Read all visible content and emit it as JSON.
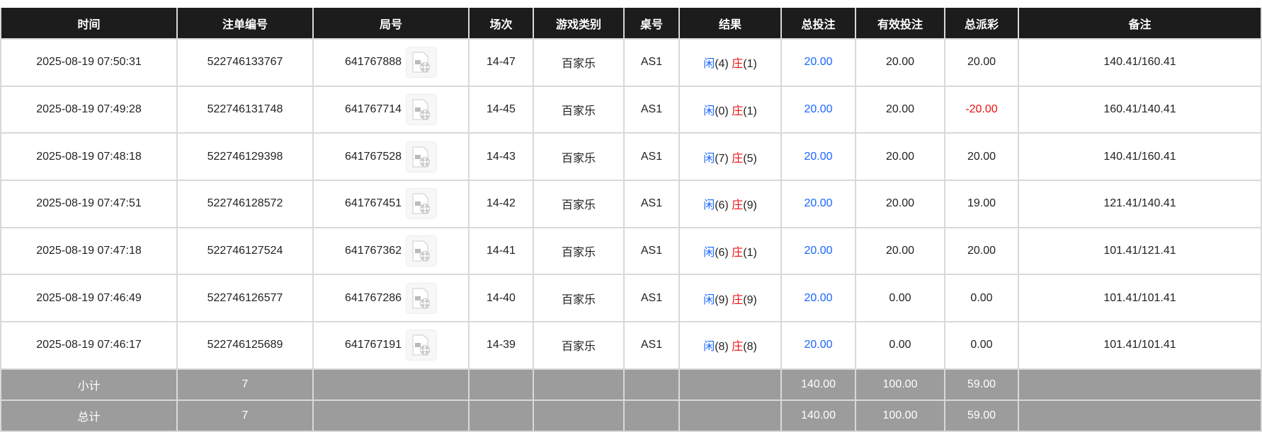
{
  "headers": [
    "时间",
    "注单编号",
    "局号",
    "场次",
    "游戏类别",
    "桌号",
    "结果",
    "总投注",
    "有效投注",
    "总派彩",
    "备注"
  ],
  "rows": [
    {
      "time": "2025-08-19 07:50:31",
      "bet_id": "522746133767",
      "round": "641767888",
      "shoe": "14-47",
      "game": "百家乐",
      "table": "AS1",
      "player_label": "闲",
      "player": "(4)",
      "banker_label": "庄",
      "banker": "(1)",
      "total_bet": "20.00",
      "valid_bet": "20.00",
      "payout": "20.00",
      "payout_negative": false,
      "note": "140.41/160.41"
    },
    {
      "time": "2025-08-19 07:49:28",
      "bet_id": "522746131748",
      "round": "641767714",
      "shoe": "14-45",
      "game": "百家乐",
      "table": "AS1",
      "player_label": "闲",
      "player": "(0)",
      "banker_label": "庄",
      "banker": "(1)",
      "total_bet": "20.00",
      "valid_bet": "20.00",
      "payout": "-20.00",
      "payout_negative": true,
      "note": "160.41/140.41"
    },
    {
      "time": "2025-08-19 07:48:18",
      "bet_id": "522746129398",
      "round": "641767528",
      "shoe": "14-43",
      "game": "百家乐",
      "table": "AS1",
      "player_label": "闲",
      "player": "(7)",
      "banker_label": "庄",
      "banker": "(5)",
      "total_bet": "20.00",
      "valid_bet": "20.00",
      "payout": "20.00",
      "payout_negative": false,
      "note": "140.41/160.41"
    },
    {
      "time": "2025-08-19 07:47:51",
      "bet_id": "522746128572",
      "round": "641767451",
      "shoe": "14-42",
      "game": "百家乐",
      "table": "AS1",
      "player_label": "闲",
      "player": "(6)",
      "banker_label": "庄",
      "banker": "(9)",
      "total_bet": "20.00",
      "valid_bet": "20.00",
      "payout": "19.00",
      "payout_negative": false,
      "note": "121.41/140.41"
    },
    {
      "time": "2025-08-19 07:47:18",
      "bet_id": "522746127524",
      "round": "641767362",
      "shoe": "14-41",
      "game": "百家乐",
      "table": "AS1",
      "player_label": "闲",
      "player": "(6)",
      "banker_label": "庄",
      "banker": "(1)",
      "total_bet": "20.00",
      "valid_bet": "20.00",
      "payout": "20.00",
      "payout_negative": false,
      "note": "101.41/121.41"
    },
    {
      "time": "2025-08-19 07:46:49",
      "bet_id": "522746126577",
      "round": "641767286",
      "shoe": "14-40",
      "game": "百家乐",
      "table": "AS1",
      "player_label": "闲",
      "player": "(9)",
      "banker_label": "庄",
      "banker": "(9)",
      "total_bet": "20.00",
      "valid_bet": "0.00",
      "payout": "0.00",
      "payout_negative": false,
      "note": "101.41/101.41"
    },
    {
      "time": "2025-08-19 07:46:17",
      "bet_id": "522746125689",
      "round": "641767191",
      "shoe": "14-39",
      "game": "百家乐",
      "table": "AS1",
      "player_label": "闲",
      "player": "(8)",
      "banker_label": "庄",
      "banker": "(8)",
      "total_bet": "20.00",
      "valid_bet": "0.00",
      "payout": "0.00",
      "payout_negative": false,
      "note": "101.41/101.41"
    }
  ],
  "summary": [
    {
      "label": "小计",
      "count": "7",
      "total_bet": "140.00",
      "valid_bet": "100.00",
      "payout": "59.00"
    },
    {
      "label": "总计",
      "count": "7",
      "total_bet": "140.00",
      "valid_bet": "100.00",
      "payout": "59.00"
    }
  ],
  "colors": {
    "header_bg": "#1c1c1c",
    "summary_bg": "#9c9c9c",
    "blue": "#1a66ff",
    "red": "#ee1111"
  },
  "icons": {
    "round_video": "video-file-icon"
  }
}
